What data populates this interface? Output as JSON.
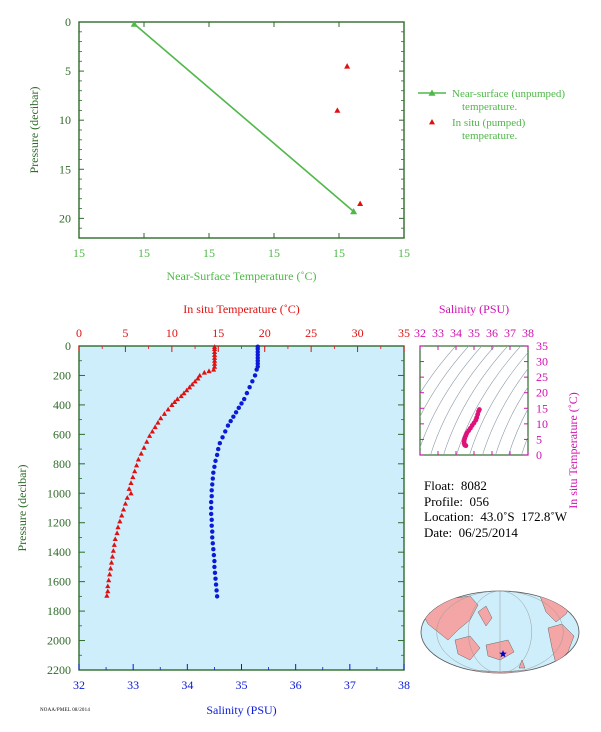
{
  "chart_data": [
    {
      "type": "line",
      "xlabel": "Near-Surface Temperature (˚C)",
      "ylabel": "Pressure (decibar)",
      "xticks": [
        "15",
        "15",
        "15",
        "15",
        "15",
        "15"
      ],
      "yticks": [
        "0",
        "5",
        "10",
        "15",
        "20"
      ],
      "ylim": [
        0,
        22
      ],
      "legend_position": "right",
      "series": [
        {
          "name": "Near-surface (unpumped) temperature.",
          "color": "#4fb848",
          "marker": "triangle",
          "points": [
            {
              "xfrac": 0.17,
              "pressure": 0.2
            },
            {
              "xfrac": 0.845,
              "pressure": 19.3
            }
          ]
        },
        {
          "name": "In situ (pumped) temperature.",
          "color": "#e01010",
          "marker": "triangle",
          "points": [
            {
              "xfrac": 0.825,
              "pressure": 4.5
            },
            {
              "xfrac": 0.795,
              "pressure": 9.0
            },
            {
              "xfrac": 0.865,
              "pressure": 18.5
            }
          ]
        }
      ]
    },
    {
      "type": "scatter",
      "title_top": "In situ Temperature (˚C)",
      "xlabel": "Salinity (PSU)",
      "ylabel": "Pressure (decibar)",
      "temp_ticks": [
        "0",
        "5",
        "10",
        "15",
        "20",
        "25",
        "30",
        "35"
      ],
      "sal_ticks": [
        "32",
        "33",
        "34",
        "35",
        "36",
        "37",
        "38"
      ],
      "pressure_ticks": [
        "0",
        "200",
        "400",
        "600",
        "800",
        "1000",
        "1200",
        "1400",
        "1600",
        "1800",
        "2000",
        "2200"
      ],
      "temp_range": [
        0,
        35
      ],
      "sal_range": [
        32,
        38
      ],
      "pressure_range": [
        0,
        2200
      ],
      "background": "#cdeefa",
      "series": [
        {
          "name": "temperature",
          "color": "#e01010",
          "marker": "triangle",
          "points": [
            [
              14.6,
              5
            ],
            [
              14.6,
              20
            ],
            [
              14.6,
              40
            ],
            [
              14.6,
              60
            ],
            [
              14.6,
              80
            ],
            [
              14.6,
              100
            ],
            [
              14.6,
              120
            ],
            [
              14.6,
              140
            ],
            [
              14.5,
              160
            ],
            [
              14.0,
              170
            ],
            [
              13.5,
              180
            ],
            [
              13.0,
              200
            ],
            [
              12.8,
              220
            ],
            [
              12.5,
              240
            ],
            [
              12.2,
              260
            ],
            [
              11.9,
              280
            ],
            [
              11.6,
              300
            ],
            [
              11.3,
              320
            ],
            [
              11.0,
              340
            ],
            [
              10.6,
              360
            ],
            [
              10.3,
              380
            ],
            [
              10.0,
              400
            ],
            [
              9.6,
              430
            ],
            [
              9.2,
              460
            ],
            [
              8.8,
              490
            ],
            [
              8.5,
              520
            ],
            [
              8.2,
              550
            ],
            [
              7.9,
              580
            ],
            [
              7.6,
              610
            ],
            [
              7.3,
              650
            ],
            [
              7.0,
              690
            ],
            [
              6.7,
              730
            ],
            [
              6.4,
              770
            ],
            [
              6.2,
              810
            ],
            [
              6.0,
              850
            ],
            [
              5.8,
              890
            ],
            [
              5.6,
              930
            ],
            [
              5.4,
              970
            ],
            [
              5.6,
              1000
            ],
            [
              5.2,
              1030
            ],
            [
              5.0,
              1070
            ],
            [
              4.8,
              1110
            ],
            [
              4.6,
              1150
            ],
            [
              4.4,
              1190
            ],
            [
              4.2,
              1230
            ],
            [
              4.1,
              1270
            ],
            [
              3.9,
              1310
            ],
            [
              3.8,
              1350
            ],
            [
              3.7,
              1390
            ],
            [
              3.6,
              1430
            ],
            [
              3.5,
              1470
            ],
            [
              3.4,
              1510
            ],
            [
              3.3,
              1550
            ],
            [
              3.2,
              1590
            ],
            [
              3.1,
              1630
            ],
            [
              3.1,
              1665
            ],
            [
              3.0,
              1695
            ]
          ]
        },
        {
          "name": "salinity",
          "color": "#0a1ad8",
          "marker": "dot",
          "points": [
            [
              35.3,
              5
            ],
            [
              35.3,
              20
            ],
            [
              35.3,
              40
            ],
            [
              35.3,
              60
            ],
            [
              35.3,
              80
            ],
            [
              35.3,
              100
            ],
            [
              35.3,
              120
            ],
            [
              35.3,
              140
            ],
            [
              35.28,
              160
            ],
            [
              35.25,
              200
            ],
            [
              35.2,
              240
            ],
            [
              35.15,
              280
            ],
            [
              35.1,
              320
            ],
            [
              35.05,
              360
            ],
            [
              35.0,
              390
            ],
            [
              34.95,
              420
            ],
            [
              34.9,
              450
            ],
            [
              34.85,
              480
            ],
            [
              34.8,
              510
            ],
            [
              34.75,
              540
            ],
            [
              34.7,
              580
            ],
            [
              34.65,
              620
            ],
            [
              34.6,
              660
            ],
            [
              34.57,
              700
            ],
            [
              34.55,
              740
            ],
            [
              34.52,
              780
            ],
            [
              34.5,
              820
            ],
            [
              34.48,
              860
            ],
            [
              34.47,
              900
            ],
            [
              34.46,
              940
            ],
            [
              34.45,
              980
            ],
            [
              34.45,
              1020
            ],
            [
              34.44,
              1060
            ],
            [
              34.44,
              1100
            ],
            [
              34.44,
              1140
            ],
            [
              34.45,
              1180
            ],
            [
              34.45,
              1220
            ],
            [
              34.46,
              1260
            ],
            [
              34.46,
              1300
            ],
            [
              34.47,
              1340
            ],
            [
              34.48,
              1380
            ],
            [
              34.49,
              1420
            ],
            [
              34.5,
              1460
            ],
            [
              34.5,
              1500
            ],
            [
              34.51,
              1540
            ],
            [
              34.52,
              1580
            ],
            [
              34.53,
              1620
            ],
            [
              34.54,
              1660
            ],
            [
              34.55,
              1700
            ]
          ]
        }
      ]
    },
    {
      "type": "scatter",
      "title_top": "Salinity (PSU)",
      "ylabel": "In situ Temperature (˚C)",
      "sal_ticks": [
        "32",
        "33",
        "34",
        "35",
        "36",
        "37",
        "38"
      ],
      "temp_ticks": [
        "0",
        "5",
        "10",
        "15",
        "20",
        "25",
        "30",
        "35"
      ],
      "sal_range": [
        32,
        38
      ],
      "temp_range": [
        0,
        35
      ],
      "color": "#e0107a",
      "points": [
        [
          35.3,
          14.6
        ],
        [
          35.25,
          14.0
        ],
        [
          35.2,
          13.0
        ],
        [
          35.15,
          12.0
        ],
        [
          35.1,
          11.2
        ],
        [
          35.0,
          10.3
        ],
        [
          34.9,
          9.5
        ],
        [
          34.8,
          8.6
        ],
        [
          34.7,
          7.8
        ],
        [
          34.6,
          7.0
        ],
        [
          34.55,
          6.3
        ],
        [
          34.5,
          5.6
        ],
        [
          34.47,
          5.0
        ],
        [
          34.45,
          4.4
        ],
        [
          34.45,
          3.8
        ],
        [
          34.47,
          3.4
        ],
        [
          34.5,
          3.1
        ],
        [
          34.55,
          3.0
        ]
      ]
    }
  ],
  "info": {
    "float": "Float:  8082",
    "profile": "Profile:  056",
    "location": "Location:  43.0˚S  172.8˚W",
    "date": "Date:  06/25/2014"
  },
  "map": {
    "marker_color": "#0000cc",
    "land_color": "#f4a6a6",
    "ocean_color": "#cdeefa"
  },
  "footer_id": "NOAA/PMEL  08/2014",
  "colors": {
    "axis": "#2f6b2a",
    "temp": "#e01010",
    "sal": "#0a1ad8",
    "ts": "#d010b0",
    "near_surface": "#4fb848"
  }
}
